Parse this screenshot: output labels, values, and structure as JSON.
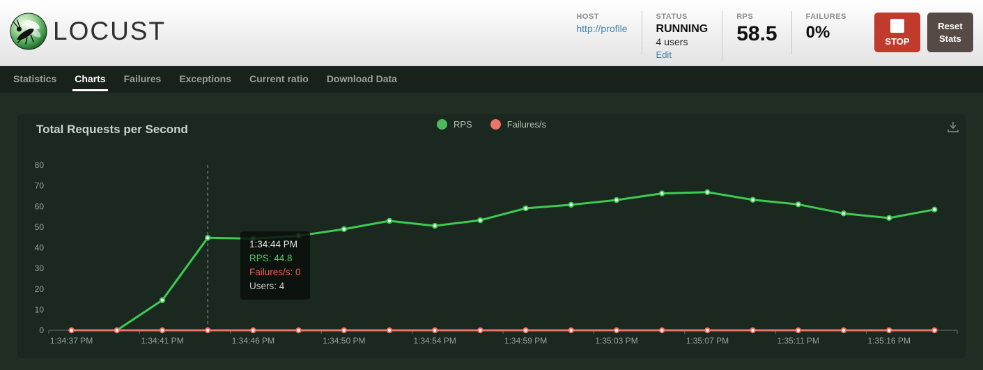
{
  "header": {
    "logo_text": "LOCUST",
    "host": {
      "label": "HOST",
      "value": "http://profile"
    },
    "status": {
      "label": "STATUS",
      "value": "RUNNING",
      "users": "4 users",
      "edit_link": "Edit"
    },
    "rps": {
      "label": "RPS",
      "value": "58.5"
    },
    "failures": {
      "label": "FAILURES",
      "value": "0%"
    },
    "stop_button_label": "STOP",
    "reset_button_label": "Reset Stats"
  },
  "nav": {
    "tabs": [
      {
        "label": "Statistics",
        "active": false
      },
      {
        "label": "Charts",
        "active": true
      },
      {
        "label": "Failures",
        "active": false
      },
      {
        "label": "Exceptions",
        "active": false
      },
      {
        "label": "Current ratio",
        "active": false
      },
      {
        "label": "Download Data",
        "active": false
      }
    ]
  },
  "chart": {
    "title": "Total Requests per Second",
    "legend": [
      {
        "label": "RPS",
        "color": "#4cb95d"
      },
      {
        "label": "Failures/s",
        "color": "#ec7368"
      }
    ]
  },
  "tooltip": {
    "time": "1:34:44 PM",
    "rps_line": "RPS: 44.8",
    "failures_line": "Failures/s: 0",
    "users_line": "Users: 4",
    "time_color": "#e2e7e2",
    "rps_color": "#53c963",
    "failures_color": "#e9605a",
    "users_color": "#c7cdc7"
  },
  "chart_data": {
    "type": "line",
    "title": "Total Requests per Second",
    "n_points": 20,
    "x_tick_indices": [
      0,
      2,
      4,
      6,
      8,
      10,
      12,
      14,
      16,
      18
    ],
    "x_tick_labels": [
      "1:34:37 PM",
      "1:34:41 PM",
      "1:34:46 PM",
      "1:34:50 PM",
      "1:34:54 PM",
      "1:34:59 PM",
      "1:35:03 PM",
      "1:35:07 PM",
      "1:35:11 PM",
      "1:35:16 PM"
    ],
    "ylim": [
      0,
      80
    ],
    "yticks": [
      0,
      10,
      20,
      30,
      40,
      50,
      60,
      70,
      80
    ],
    "grid": false,
    "legend_position": "top-center",
    "hover_index": 3,
    "hover_label": "1:34:44 PM",
    "series": [
      {
        "name": "RPS",
        "color": "#3ecb53",
        "values": [
          0,
          0,
          14.6,
          44.8,
          44.4,
          45.8,
          49.0,
          53.0,
          50.6,
          53.3,
          59.1,
          60.8,
          63.1,
          66.3,
          66.9,
          63.2,
          61.0,
          56.6,
          54.4,
          58.5
        ]
      },
      {
        "name": "Failures/s",
        "color": "#ee7167",
        "values": [
          0,
          0,
          0,
          0,
          0,
          0,
          0,
          0,
          0,
          0,
          0,
          0,
          0,
          0,
          0,
          0,
          0,
          0,
          0,
          0
        ]
      }
    ]
  }
}
